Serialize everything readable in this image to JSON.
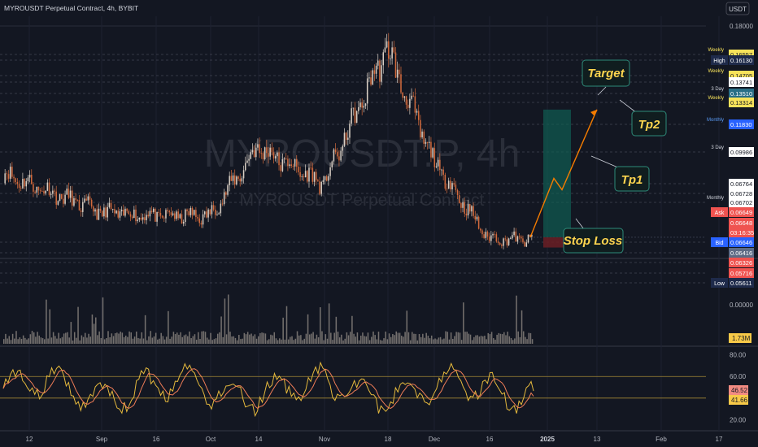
{
  "header": {
    "title": "MYROUSDT Perpetual Contract, 4h, BYBIT",
    "currency": "USDT"
  },
  "watermark": {
    "symbol": "MYROUSDT.P, 4h",
    "name": "MYROUSDT Perpetual Contract"
  },
  "colors": {
    "bg": "#131722",
    "up": "#d9cfc4",
    "down": "#d36a3c",
    "grid": "#2a2e39",
    "volume": "#c5b9ad",
    "rsi": "#e5b93d",
    "rsi_ma": "#ef7d57",
    "plan": "#f57c00",
    "label_yellow": "#ffd54f"
  },
  "chart_data": {
    "type": "candlestick",
    "timeframe": "4h",
    "x_ticks": [
      "12",
      "Sep",
      "16",
      "Oct",
      "14",
      "Nov",
      "18",
      "Dec",
      "16",
      "2025",
      "13",
      "Feb",
      "17"
    ],
    "price_ticks": [
      "0.18000"
    ],
    "ylim": [
      0.056,
      0.18
    ],
    "price_path": [
      {
        "x": "12",
        "y": 0.1
      },
      {
        "x": "Sep",
        "y": 0.08
      },
      {
        "x": "16",
        "y": 0.078
      },
      {
        "x": "Oct",
        "y": 0.078
      },
      {
        "x": "14",
        "y": 0.115
      },
      {
        "x": "Nov",
        "y": 0.095
      },
      {
        "x": "18",
        "y": 0.168
      },
      {
        "x": "Dec",
        "y": 0.108
      },
      {
        "x": "16",
        "y": 0.066
      },
      {
        "x": "2025",
        "y": 0.065
      }
    ],
    "levels": [
      {
        "tag": "Weekly",
        "value": "0.16557",
        "style": "yellow"
      },
      {
        "tag": "High",
        "value": "0.16130",
        "style": "navy"
      },
      {
        "tag": "Weekly",
        "value": "0.14705",
        "style": "yellow"
      },
      {
        "tag": "",
        "value": "0.13741",
        "style": "plain"
      },
      {
        "tag": "3 Day",
        "value": "0.13510",
        "style": "teal"
      },
      {
        "tag": "Weekly",
        "value": "0.13314",
        "style": "yellow"
      },
      {
        "tag": "Monthly",
        "value": "0.11830",
        "style": "blue"
      },
      {
        "tag": "3 Day",
        "value": "0.09986",
        "style": "plain"
      },
      {
        "tag": "",
        "value": "0.06764",
        "style": "plain"
      },
      {
        "tag": "",
        "value": "0.06728",
        "style": "plain"
      },
      {
        "tag": "Monthly",
        "value": "0.06702",
        "style": "plain"
      },
      {
        "tag": "Ask",
        "value": "0.06649",
        "style": "red"
      },
      {
        "tag": "",
        "value": "0.06648",
        "style": "red"
      },
      {
        "tag": "",
        "value": "03:16:35",
        "style": "red"
      },
      {
        "tag": "Bid",
        "value": "0.06646",
        "style": "blue"
      },
      {
        "tag": "",
        "value": "0.06416",
        "style": "slate"
      },
      {
        "tag": "",
        "value": "0.06326",
        "style": "red"
      },
      {
        "tag": "",
        "value": "0.05716",
        "style": "red"
      },
      {
        "tag": "Low",
        "value": "0.05611",
        "style": "navy"
      }
    ],
    "plan": {
      "entry": 0.0665,
      "stop": 0.061,
      "target": 0.1351,
      "tp1": 0.0999,
      "tp2": 0.1351,
      "labels": {
        "target": "Target",
        "tp1": "Tp1",
        "tp2": "Tp2",
        "stop": "Stop Loss"
      }
    },
    "volume": {
      "ticks": [
        "0.00000"
      ],
      "last_label": "1.73M"
    },
    "rsi": {
      "ticks": [
        "80.00",
        "60.00",
        "40.00",
        "20.00"
      ],
      "ylim": [
        12,
        85
      ],
      "value": "46.52",
      "ma_value": "41.66",
      "levels": [
        60,
        40
      ]
    }
  }
}
